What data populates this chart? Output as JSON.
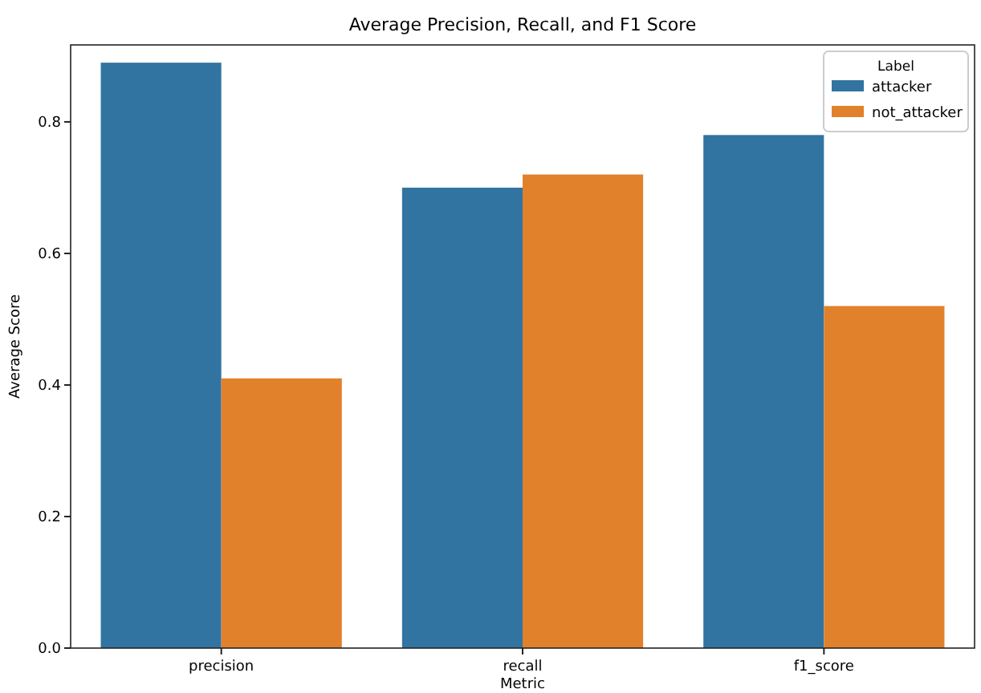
{
  "chart_data": {
    "type": "bar",
    "title": "Average Precision, Recall, and F1 Score",
    "xlabel": "Metric",
    "ylabel": "Average Score",
    "legend_title": "Label",
    "legend": "top right",
    "categories": [
      "precision",
      "recall",
      "f1_score"
    ],
    "series": [
      {
        "name": "attacker",
        "color": "#3274a1",
        "values": [
          0.89,
          0.7,
          0.78
        ]
      },
      {
        "name": "not_attacker",
        "color": "#e1812c",
        "values": [
          0.41,
          0.72,
          0.52
        ]
      }
    ],
    "ylim": [
      0,
      0.917
    ],
    "yticks": [
      {
        "value": 0,
        "label": "0.0"
      },
      {
        "value": 0.2,
        "label": "0.2"
      },
      {
        "value": 0.4,
        "label": "0.4"
      },
      {
        "value": 0.6,
        "label": "0.6"
      },
      {
        "value": 0.8,
        "label": "0.8"
      }
    ]
  }
}
